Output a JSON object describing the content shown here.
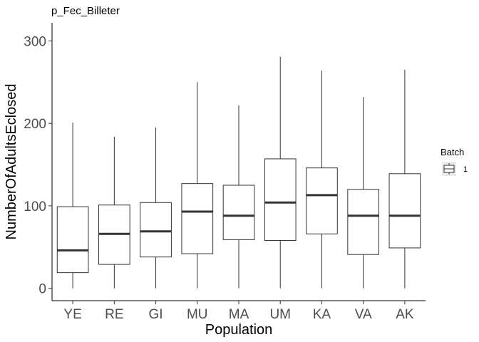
{
  "chart_data": {
    "type": "boxplot",
    "title": "p_Fec_Billeter",
    "xlabel": "Population",
    "ylabel": "NumberOfAdultsEclosed",
    "ylim": [
      -15,
      322
    ],
    "yticks": [
      0,
      100,
      200,
      300
    ],
    "categories": [
      "YE",
      "RE",
      "GI",
      "MU",
      "MA",
      "UM",
      "KA",
      "VA",
      "AK"
    ],
    "boxes": [
      {
        "min": 0,
        "q1": 19,
        "median": 46,
        "q3": 99,
        "max": 201
      },
      {
        "min": 0,
        "q1": 29,
        "median": 66,
        "q3": 101,
        "max": 184
      },
      {
        "min": 0,
        "q1": 38,
        "median": 69,
        "q3": 104,
        "max": 195
      },
      {
        "min": 0,
        "q1": 42,
        "median": 93,
        "q3": 127,
        "max": 250
      },
      {
        "min": 0,
        "q1": 59,
        "median": 88,
        "q3": 125,
        "max": 222
      },
      {
        "min": 0,
        "q1": 58,
        "median": 104,
        "q3": 157,
        "max": 281
      },
      {
        "min": 0,
        "q1": 66,
        "median": 113,
        "q3": 146,
        "max": 264
      },
      {
        "min": 0,
        "q1": 41,
        "median": 88,
        "q3": 120,
        "max": 232
      },
      {
        "min": 0,
        "q1": 49,
        "median": 88,
        "q3": 139,
        "max": 265
      }
    ],
    "grid": false,
    "legend": {
      "title": "Batch",
      "entries": [
        "1"
      ],
      "position": "right"
    }
  }
}
